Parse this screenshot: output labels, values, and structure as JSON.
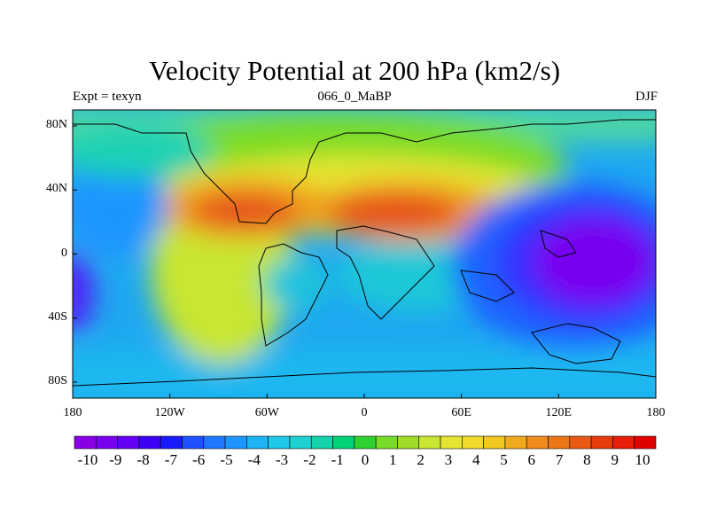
{
  "header": {
    "title": "Velocity Potential at 200 hPa (km2/s)",
    "left": "Expt = texyn",
    "center": "066_0_MaBP",
    "right": "DJF"
  },
  "axes": {
    "lat_labels": [
      "80N",
      "40N",
      "0",
      "40S",
      "80S"
    ],
    "lat_values": [
      80,
      40,
      0,
      -40,
      -80
    ],
    "lon_labels": [
      "180",
      "120W",
      "60W",
      "0",
      "60E",
      "120E",
      "180"
    ],
    "lon_values": [
      -180,
      -120,
      -60,
      0,
      60,
      120,
      180
    ],
    "lat_range": [
      -90,
      90
    ],
    "lon_range": [
      -180,
      180
    ]
  },
  "colorbar": {
    "labels": [
      "-10",
      "-9",
      "-8",
      "-7",
      "-6",
      "-5",
      "-4",
      "-3",
      "-2",
      "-1",
      "0",
      "1",
      "2",
      "3",
      "4",
      "5",
      "6",
      "7",
      "8",
      "9",
      "10"
    ],
    "colors": [
      "#8a00e6",
      "#7a00f0",
      "#6400f5",
      "#3c00f5",
      "#1a1aff",
      "#1e50ff",
      "#1e78ff",
      "#1e96ff",
      "#1eb4f5",
      "#1ec8e6",
      "#1ed2d2",
      "#14d2aa",
      "#00d278",
      "#30d230",
      "#78dc28",
      "#a0dc28",
      "#c8e632",
      "#e6e632",
      "#f0dc28",
      "#f0c81e",
      "#f0aa1e",
      "#f08c1e",
      "#eb7814",
      "#eb5a14",
      "#e63c0a",
      "#e61e0a",
      "#e10000"
    ]
  },
  "map_colors": {
    "deep_neg": "#7800f0",
    "neg": "#2860ff",
    "mid_neg": "#1ea0f5",
    "zero": "#1ed2c8",
    "pos": "#78dc28",
    "mid_pos": "#e6e632",
    "high_pos": "#f0a01e",
    "max_pos": "#e6501e"
  }
}
